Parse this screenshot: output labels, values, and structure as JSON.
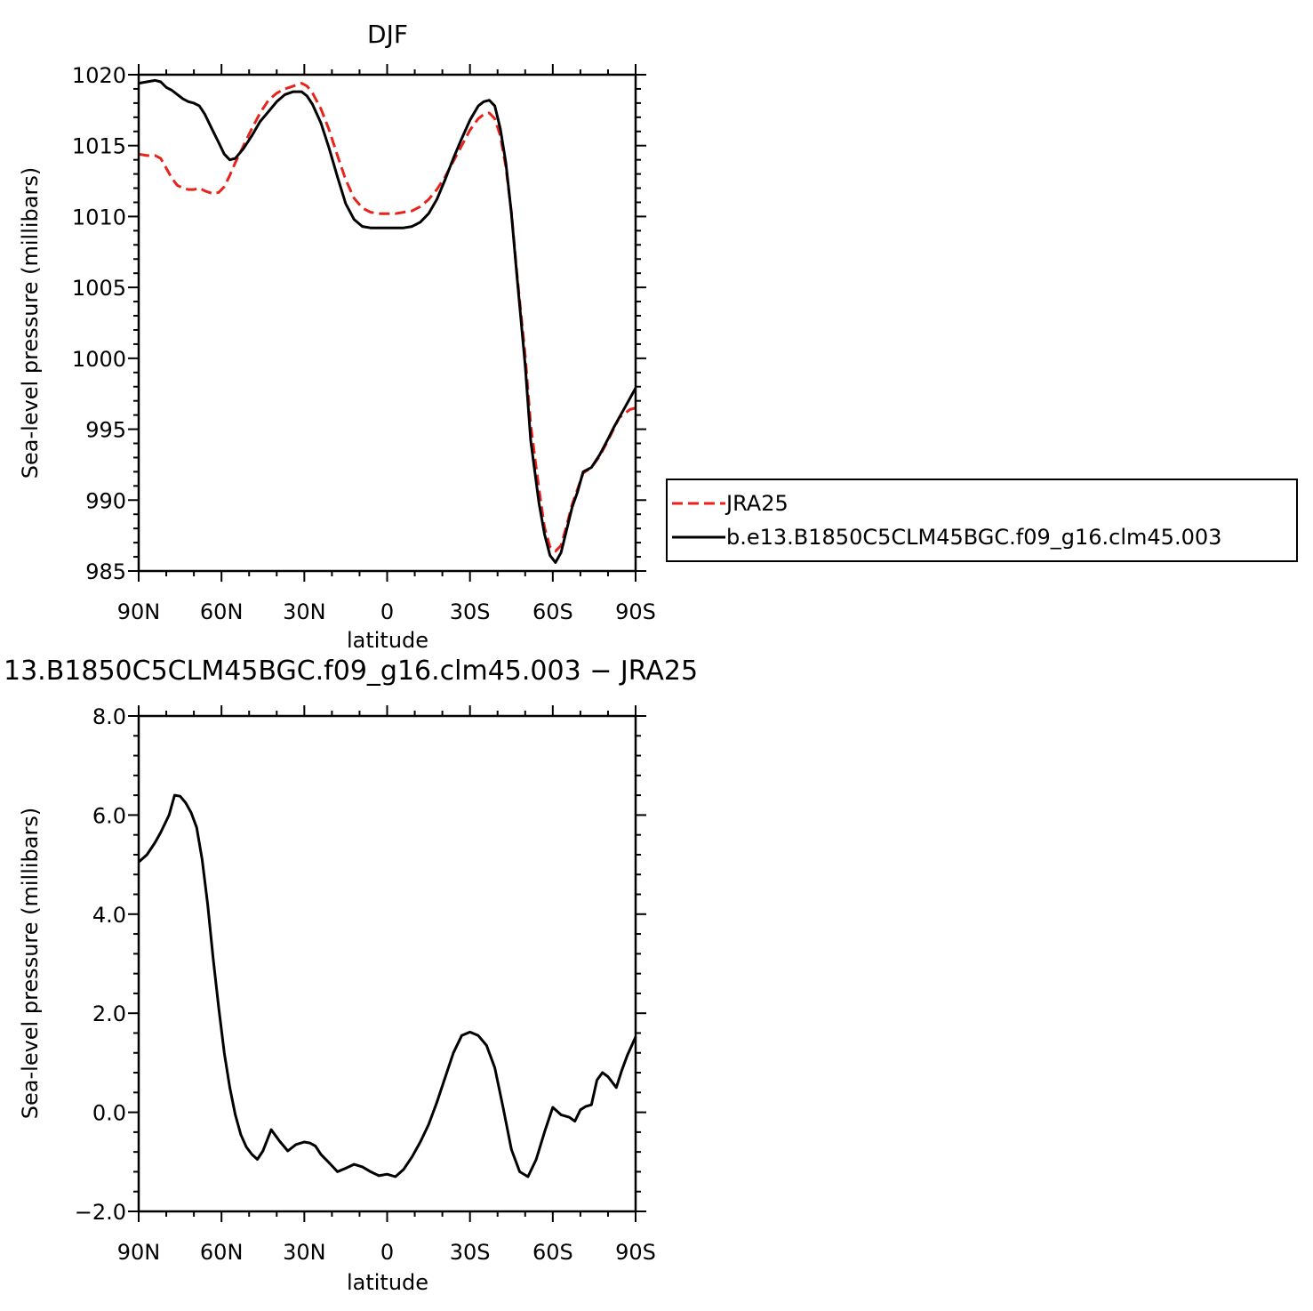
{
  "chart_data": [
    {
      "type": "line",
      "title": "DJF",
      "xlabel": "latitude",
      "ylabel": "Sea-level pressure (millibars)",
      "xlim": [
        90,
        -90
      ],
      "ylim": [
        985,
        1020
      ],
      "xticks": [
        90,
        60,
        30,
        0,
        -30,
        -60,
        -90
      ],
      "xtick_labels": [
        "90N",
        "60N",
        "30N",
        "0",
        "30S",
        "60S",
        "90S"
      ],
      "yticks": [
        985,
        990,
        995,
        1000,
        1005,
        1010,
        1015,
        1020
      ],
      "ytick_labels": [
        "985",
        "990",
        "995",
        "1000",
        "1005",
        "1010",
        "1015",
        "1020"
      ],
      "grid": false,
      "legend_position": "right",
      "series": [
        {
          "name": "JRA25",
          "color": "#e8231c",
          "dash": "dashed",
          "x": [
            90,
            87,
            84,
            82,
            80,
            78,
            76,
            74,
            72,
            70,
            68,
            66,
            63,
            61,
            59,
            57,
            55,
            52,
            49,
            46,
            43,
            40,
            37,
            34,
            31,
            29,
            27,
            24,
            21,
            18,
            15,
            12,
            9,
            6,
            3,
            0,
            -3,
            -6,
            -9,
            -12,
            -15,
            -18,
            -21,
            -24,
            -27,
            -30,
            -33,
            -35,
            -37,
            -39,
            -41,
            -43,
            -45,
            -47,
            -50,
            -52,
            -55,
            -57,
            -59,
            -61,
            -63,
            -65,
            -67,
            -69,
            -71,
            -74,
            -77,
            -80,
            -82,
            -84,
            -86,
            -88,
            -90
          ],
          "y": [
            1014.4,
            1014.3,
            1014.3,
            1014.1,
            1013.4,
            1012.7,
            1012.2,
            1012.0,
            1011.9,
            1011.9,
            1012.0,
            1011.8,
            1011.6,
            1011.7,
            1012.1,
            1012.9,
            1013.8,
            1015.0,
            1016.2,
            1017.3,
            1018.2,
            1018.7,
            1019.0,
            1019.2,
            1019.4,
            1019.2,
            1018.7,
            1017.6,
            1016.1,
            1014.3,
            1012.6,
            1011.3,
            1010.6,
            1010.3,
            1010.2,
            1010.2,
            1010.2,
            1010.3,
            1010.4,
            1010.7,
            1011.2,
            1011.9,
            1012.8,
            1013.9,
            1015.0,
            1016.1,
            1016.9,
            1017.2,
            1017.3,
            1016.9,
            1015.7,
            1013.5,
            1010.3,
            1006.0,
            1000.2,
            995.3,
            990.8,
            988.1,
            986.7,
            986.4,
            986.8,
            988.2,
            989.7,
            990.8,
            991.9,
            992.3,
            993.1,
            994.2,
            995.0,
            995.8,
            996.1,
            996.4,
            996.5
          ]
        },
        {
          "name": "b.e13.B1850C5CLM45BGC.f09_g16.clm45.003",
          "color": "#000000",
          "dash": "solid",
          "x": [
            90,
            87,
            84,
            82,
            80,
            78,
            76,
            74,
            72,
            70,
            68,
            66,
            63,
            61,
            59,
            57,
            55,
            52,
            49,
            46,
            43,
            40,
            37,
            34,
            31,
            29,
            27,
            24,
            21,
            18,
            15,
            12,
            9,
            6,
            3,
            0,
            -3,
            -6,
            -9,
            -12,
            -15,
            -18,
            -21,
            -24,
            -27,
            -30,
            -33,
            -35,
            -37,
            -39,
            -41,
            -43,
            -45,
            -47,
            -50,
            -52,
            -55,
            -57,
            -59,
            -61,
            -63,
            -65,
            -67,
            -69,
            -71,
            -74,
            -77,
            -80,
            -82,
            -84,
            -86,
            -88,
            -90
          ],
          "y": [
            1019.4,
            1019.5,
            1019.6,
            1019.5,
            1019.1,
            1018.9,
            1018.6,
            1018.3,
            1018.1,
            1018.0,
            1017.8,
            1017.2,
            1016.0,
            1015.2,
            1014.4,
            1014.0,
            1014.1,
            1014.8,
            1015.7,
            1016.7,
            1017.4,
            1018.1,
            1018.6,
            1018.8,
            1018.8,
            1018.5,
            1017.9,
            1016.6,
            1014.8,
            1012.8,
            1010.9,
            1009.8,
            1009.3,
            1009.2,
            1009.2,
            1009.2,
            1009.2,
            1009.2,
            1009.3,
            1009.6,
            1010.2,
            1011.2,
            1012.6,
            1014.1,
            1015.5,
            1016.8,
            1017.8,
            1018.1,
            1018.2,
            1017.8,
            1016.2,
            1013.8,
            1010.2,
            1005.8,
            999.5,
            994.2,
            989.8,
            987.6,
            986.1,
            985.6,
            986.3,
            987.9,
            989.5,
            990.6,
            992.0,
            992.3,
            993.2,
            994.3,
            995.1,
            995.8,
            996.5,
            997.2,
            997.9
          ]
        }
      ]
    },
    {
      "type": "line",
      "title": "13.B1850C5CLM45BGC.f09_g16.clm45.003 − JRA25",
      "xlabel": "latitude",
      "ylabel": "Sea-level pressure (millibars)",
      "xlim": [
        90,
        -90
      ],
      "ylim": [
        -2.0,
        8.0
      ],
      "xticks": [
        90,
        60,
        30,
        0,
        -30,
        -60,
        -90
      ],
      "xtick_labels": [
        "90N",
        "60N",
        "30N",
        "0",
        "30S",
        "60S",
        "90S"
      ],
      "yticks": [
        -2.0,
        0.0,
        2.0,
        4.0,
        6.0,
        8.0
      ],
      "ytick_labels": [
        "−2.0",
        "0.0",
        "2.0",
        "4.0",
        "6.0",
        "8.0"
      ],
      "grid": false,
      "series": [
        {
          "color": "#000000",
          "dash": "solid",
          "x": [
            90,
            87,
            84,
            82,
            79,
            77,
            75,
            73,
            71,
            69,
            67,
            65,
            63,
            61,
            59,
            57,
            55,
            53,
            51,
            49,
            47,
            45,
            42,
            39,
            36,
            33,
            30,
            28,
            26,
            24,
            21,
            18,
            15,
            12,
            9,
            6,
            3,
            0,
            -3,
            -6,
            -9,
            -12,
            -15,
            -18,
            -21,
            -24,
            -27,
            -30,
            -33,
            -36,
            -39,
            -42,
            -45,
            -48,
            -51,
            -54,
            -57,
            -60,
            -63,
            -66,
            -68,
            -70,
            -72,
            -74,
            -76,
            -78,
            -80,
            -83,
            -85,
            -87,
            -90
          ],
          "y": [
            5.05,
            5.2,
            5.45,
            5.65,
            6.0,
            6.4,
            6.38,
            6.25,
            6.05,
            5.75,
            5.1,
            4.2,
            3.1,
            2.1,
            1.2,
            0.5,
            -0.05,
            -0.45,
            -0.7,
            -0.85,
            -0.95,
            -0.78,
            -0.35,
            -0.58,
            -0.78,
            -0.65,
            -0.6,
            -0.62,
            -0.68,
            -0.85,
            -1.02,
            -1.2,
            -1.13,
            -1.05,
            -1.1,
            -1.2,
            -1.28,
            -1.25,
            -1.3,
            -1.15,
            -0.9,
            -0.6,
            -0.25,
            0.2,
            0.7,
            1.2,
            1.55,
            1.62,
            1.55,
            1.35,
            0.9,
            0.1,
            -0.75,
            -1.2,
            -1.3,
            -0.95,
            -0.4,
            0.1,
            -0.05,
            -0.1,
            -0.18,
            0.05,
            0.12,
            0.15,
            0.65,
            0.8,
            0.72,
            0.5,
            0.85,
            1.15,
            1.52
          ]
        }
      ]
    }
  ]
}
